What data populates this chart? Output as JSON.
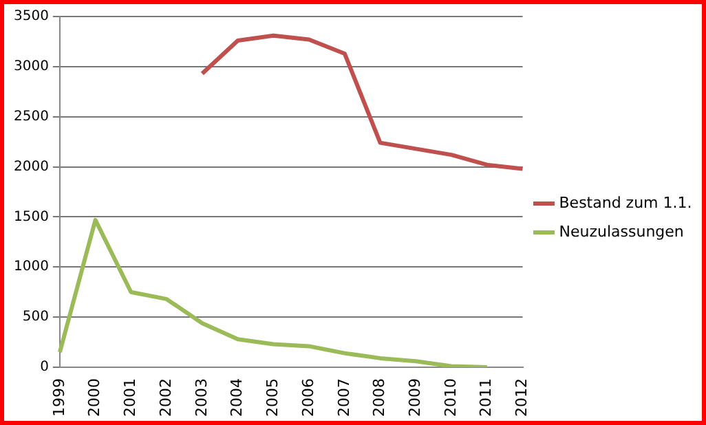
{
  "chart_data": {
    "type": "line",
    "categories": [
      "1999",
      "2000",
      "2001",
      "2002",
      "2003",
      "2004",
      "2005",
      "2006",
      "2007",
      "2008",
      "2009",
      "2010",
      "2011",
      "2012"
    ],
    "series": [
      {
        "name": "Bestand zum 1.1.",
        "color": "#c0504d",
        "values": [
          null,
          null,
          null,
          null,
          2930,
          3260,
          3310,
          3270,
          3130,
          2240,
          2180,
          2120,
          2020,
          1980
        ]
      },
      {
        "name": "Neuzulassungen",
        "color": "#9bbb59",
        "values": [
          150,
          1470,
          750,
          680,
          440,
          280,
          230,
          210,
          140,
          90,
          60,
          10,
          0,
          null
        ]
      }
    ],
    "ylim": [
      0,
      3500
    ],
    "yticks": [
      0,
      500,
      1000,
      1500,
      2000,
      2500,
      3000,
      3500
    ],
    "grid": "y",
    "legend": "right",
    "marker": "none"
  }
}
